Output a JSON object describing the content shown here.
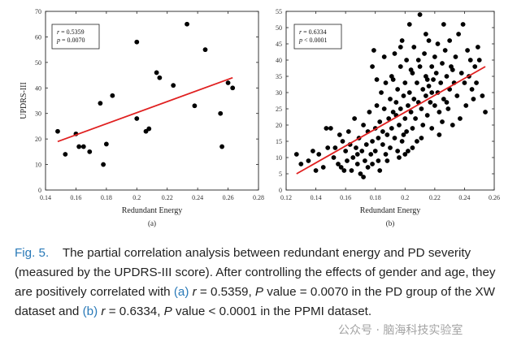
{
  "chart_data": [
    {
      "type": "scatter",
      "panel_label": "(a)",
      "xlabel": "Redundant Energy",
      "ylabel": "UPDRS-III",
      "xlim": [
        0.14,
        0.28
      ],
      "ylim": [
        0,
        70
      ],
      "xticks": [
        0.14,
        0.16,
        0.18,
        0.2,
        0.22,
        0.24,
        0.26,
        0.28
      ],
      "yticks": [
        0,
        10,
        20,
        30,
        40,
        50,
        60,
        70
      ],
      "annotation": [
        "r = 0.5359",
        "p = 0.0070"
      ],
      "point_color": "#000000",
      "fit_color": "#e02020",
      "points": [
        [
          0.148,
          23
        ],
        [
          0.153,
          14
        ],
        [
          0.16,
          22
        ],
        [
          0.162,
          17
        ],
        [
          0.165,
          17
        ],
        [
          0.169,
          15
        ],
        [
          0.176,
          34
        ],
        [
          0.178,
          10
        ],
        [
          0.18,
          18
        ],
        [
          0.184,
          37
        ],
        [
          0.2,
          58
        ],
        [
          0.2,
          28
        ],
        [
          0.206,
          23
        ],
        [
          0.208,
          24
        ],
        [
          0.213,
          46
        ],
        [
          0.215,
          44
        ],
        [
          0.224,
          41
        ],
        [
          0.233,
          65
        ],
        [
          0.238,
          33
        ],
        [
          0.245,
          55
        ],
        [
          0.255,
          30
        ],
        [
          0.256,
          17
        ],
        [
          0.26,
          42
        ],
        [
          0.263,
          40
        ]
      ],
      "fit_line": {
        "x": [
          0.148,
          0.263
        ],
        "y": [
          19,
          44
        ]
      }
    },
    {
      "type": "scatter",
      "panel_label": "(b)",
      "xlabel": "Redundant Energy",
      "ylabel": "",
      "xlim": [
        0.12,
        0.26
      ],
      "ylim": [
        0,
        55
      ],
      "xticks": [
        0.12,
        0.14,
        0.16,
        0.18,
        0.2,
        0.22,
        0.24,
        0.26
      ],
      "yticks": [
        0,
        5,
        10,
        15,
        20,
        25,
        30,
        35,
        40,
        45,
        50,
        55
      ],
      "annotation": [
        "r = 0.6334",
        "p < 0.0001"
      ],
      "point_color": "#000000",
      "fit_color": "#e02020",
      "points": [
        [
          0.127,
          11
        ],
        [
          0.13,
          8
        ],
        [
          0.135,
          9
        ],
        [
          0.138,
          12
        ],
        [
          0.14,
          6
        ],
        [
          0.142,
          11
        ],
        [
          0.145,
          7
        ],
        [
          0.147,
          19
        ],
        [
          0.148,
          13
        ],
        [
          0.15,
          19
        ],
        [
          0.152,
          10
        ],
        [
          0.153,
          13
        ],
        [
          0.155,
          8
        ],
        [
          0.156,
          17
        ],
        [
          0.157,
          7
        ],
        [
          0.158,
          15
        ],
        [
          0.16,
          12
        ],
        [
          0.161,
          9
        ],
        [
          0.162,
          18
        ],
        [
          0.163,
          14
        ],
        [
          0.164,
          6
        ],
        [
          0.165,
          10
        ],
        [
          0.166,
          22
        ],
        [
          0.167,
          13
        ],
        [
          0.168,
          8
        ],
        [
          0.169,
          16
        ],
        [
          0.17,
          5
        ],
        [
          0.171,
          12
        ],
        [
          0.172,
          20
        ],
        [
          0.173,
          9
        ],
        [
          0.174,
          14
        ],
        [
          0.175,
          18
        ],
        [
          0.175,
          7
        ],
        [
          0.176,
          24
        ],
        [
          0.177,
          11
        ],
        [
          0.178,
          15
        ],
        [
          0.178,
          38
        ],
        [
          0.179,
          43
        ],
        [
          0.18,
          19
        ],
        [
          0.18,
          12
        ],
        [
          0.181,
          26
        ],
        [
          0.182,
          16
        ],
        [
          0.182,
          9
        ],
        [
          0.183,
          21
        ],
        [
          0.184,
          30
        ],
        [
          0.185,
          14
        ],
        [
          0.185,
          18
        ],
        [
          0.186,
          25
        ],
        [
          0.187,
          33
        ],
        [
          0.187,
          11
        ],
        [
          0.188,
          17
        ],
        [
          0.189,
          22
        ],
        [
          0.19,
          28
        ],
        [
          0.19,
          13
        ],
        [
          0.191,
          35
        ],
        [
          0.191,
          19
        ],
        [
          0.192,
          24
        ],
        [
          0.193,
          16
        ],
        [
          0.193,
          42
        ],
        [
          0.194,
          27
        ],
        [
          0.195,
          12
        ],
        [
          0.195,
          31
        ],
        [
          0.196,
          20
        ],
        [
          0.197,
          38
        ],
        [
          0.197,
          25
        ],
        [
          0.198,
          15
        ],
        [
          0.198,
          46
        ],
        [
          0.199,
          29
        ],
        [
          0.2,
          22
        ],
        [
          0.2,
          33
        ],
        [
          0.201,
          18
        ],
        [
          0.201,
          40
        ],
        [
          0.202,
          26
        ],
        [
          0.202,
          12
        ],
        [
          0.203,
          30
        ],
        [
          0.203,
          51
        ],
        [
          0.204,
          24
        ],
        [
          0.205,
          36
        ],
        [
          0.205,
          19
        ],
        [
          0.206,
          28
        ],
        [
          0.206,
          44
        ],
        [
          0.207,
          22
        ],
        [
          0.208,
          33
        ],
        [
          0.208,
          15
        ],
        [
          0.209,
          27
        ],
        [
          0.21,
          38
        ],
        [
          0.21,
          54
        ],
        [
          0.211,
          25
        ],
        [
          0.212,
          31
        ],
        [
          0.212,
          20
        ],
        [
          0.213,
          42
        ],
        [
          0.214,
          29
        ],
        [
          0.214,
          35
        ],
        [
          0.215,
          23
        ],
        [
          0.216,
          46
        ],
        [
          0.216,
          32
        ],
        [
          0.217,
          27
        ],
        [
          0.218,
          38
        ],
        [
          0.218,
          19
        ],
        [
          0.219,
          34
        ],
        [
          0.22,
          41
        ],
        [
          0.22,
          26
        ],
        [
          0.221,
          36
        ],
        [
          0.222,
          30
        ],
        [
          0.222,
          45
        ],
        [
          0.223,
          24
        ],
        [
          0.224,
          33
        ],
        [
          0.225,
          39
        ],
        [
          0.225,
          21
        ],
        [
          0.226,
          28
        ],
        [
          0.227,
          43
        ],
        [
          0.228,
          35
        ],
        [
          0.229,
          25
        ],
        [
          0.23,
          46
        ],
        [
          0.23,
          31
        ],
        [
          0.231,
          38
        ],
        [
          0.232,
          20
        ],
        [
          0.233,
          33
        ],
        [
          0.234,
          41
        ],
        [
          0.235,
          29
        ],
        [
          0.236,
          48
        ],
        [
          0.237,
          22
        ],
        [
          0.238,
          36
        ],
        [
          0.239,
          51
        ],
        [
          0.24,
          33
        ],
        [
          0.241,
          26
        ],
        [
          0.242,
          43
        ],
        [
          0.243,
          35
        ],
        [
          0.244,
          40
        ],
        [
          0.245,
          31
        ],
        [
          0.246,
          28
        ],
        [
          0.247,
          38
        ],
        [
          0.248,
          33
        ],
        [
          0.249,
          44
        ],
        [
          0.25,
          40
        ],
        [
          0.252,
          29
        ],
        [
          0.254,
          24
        ],
        [
          0.2,
          11
        ],
        [
          0.196,
          10
        ],
        [
          0.205,
          13
        ],
        [
          0.188,
          9
        ],
        [
          0.183,
          6
        ],
        [
          0.178,
          8
        ],
        [
          0.172,
          4
        ],
        [
          0.168,
          11
        ],
        [
          0.159,
          6
        ],
        [
          0.192,
          34
        ],
        [
          0.214,
          48
        ],
        [
          0.226,
          51
        ],
        [
          0.209,
          40
        ],
        [
          0.197,
          44
        ],
        [
          0.181,
          34
        ],
        [
          0.186,
          41
        ],
        [
          0.218,
          30
        ],
        [
          0.223,
          17
        ],
        [
          0.232,
          37
        ],
        [
          0.211,
          16
        ],
        [
          0.204,
          37
        ],
        [
          0.194,
          23
        ],
        [
          0.199,
          17
        ],
        [
          0.215,
          34
        ],
        [
          0.228,
          27
        ]
      ],
      "fit_line": {
        "x": [
          0.127,
          0.254
        ],
        "y": [
          5,
          38
        ]
      }
    }
  ],
  "caption": {
    "fig_label": "Fig. 5.",
    "part1": "The partial correlation analysis between redundant energy and PD severity (measured by the UPDRS-III score). After controlling the effects of gender and age, they are positively correlated with ",
    "a_label": "(a)",
    "r_a_var": "r",
    "r_a": " = 0.5359, ",
    "p_a_var": "P",
    "p_a": " value = 0.0070 in the PD group of the XW dataset and ",
    "b_label": "(b)",
    "r_b_var": "r",
    "r_b": " = 0.6334, ",
    "p_b_var": "P",
    "p_b": " value < 0.0001 in the PPMI dataset."
  },
  "watermark": "公众号 · 脑海科技实验室"
}
